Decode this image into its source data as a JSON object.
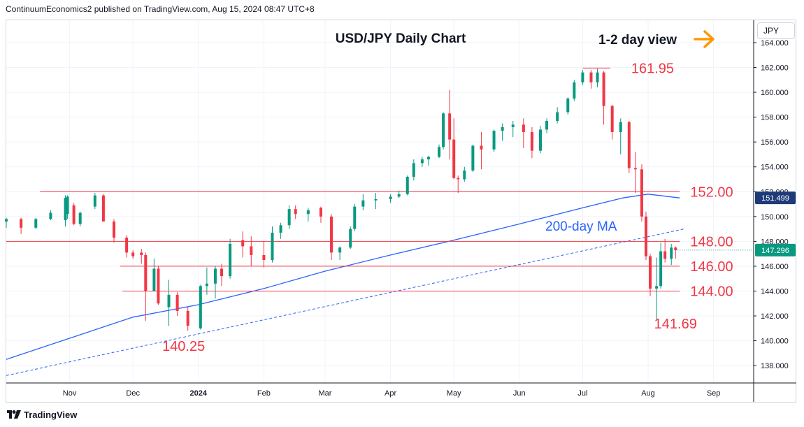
{
  "publisher_line": "ContinuumEconomics2 published on TradingView.com, Aug 15, 2024 08:47 UTC+8",
  "currency": "JPY",
  "branding": {
    "name": "TradingView",
    "icon": "tradingview-logo-icon"
  },
  "chart_data": {
    "type": "candlestick",
    "title": "USD/JPY Daily Chart",
    "subtitle": "1-2 day view",
    "y_axis": {
      "min": 136.6,
      "max": 165.8,
      "ticks": [
        "138.000",
        "140.000",
        "142.000",
        "144.000",
        "146.000",
        "148.000",
        "150.000",
        "152.000",
        "154.000",
        "156.000",
        "158.000",
        "160.000",
        "162.000",
        "164.000"
      ],
      "position": "right"
    },
    "x_axis": {
      "start": "2023-10-02",
      "end": "2024-09-20",
      "ticks": [
        {
          "date": "2023-11-01",
          "label": "Nov"
        },
        {
          "date": "2023-12-01",
          "label": "Dec"
        },
        {
          "date": "2024-01-01",
          "label": "2024"
        },
        {
          "date": "2024-02-01",
          "label": "Feb"
        },
        {
          "date": "2024-03-01",
          "label": "Mar"
        },
        {
          "date": "2024-04-01",
          "label": "Apr"
        },
        {
          "date": "2024-05-01",
          "label": "May"
        },
        {
          "date": "2024-06-01",
          "label": "Jun"
        },
        {
          "date": "2024-07-01",
          "label": "Jul"
        },
        {
          "date": "2024-08-01",
          "label": "Aug"
        },
        {
          "date": "2024-09-01",
          "label": "Sep"
        }
      ]
    },
    "colors": {
      "up": "#089981",
      "down": "#f23645",
      "level": "#f23645",
      "ma": "#2962ff",
      "trend": "#2962ff",
      "arrow": "#ff9800"
    },
    "candles": [
      [
        "2023-10-02",
        149.6,
        149.9,
        149.1,
        149.8
      ],
      [
        "2023-10-09",
        149.8,
        149.9,
        148.6,
        149.1
      ],
      [
        "2023-10-16",
        149.1,
        149.9,
        149.0,
        149.8
      ],
      [
        "2023-10-23",
        149.8,
        150.5,
        149.7,
        150.3
      ],
      [
        "2023-10-30",
        149.7,
        151.7,
        149.2,
        151.5
      ],
      [
        "2023-10-31",
        150.2,
        151.7,
        149.8,
        151.6
      ],
      [
        "2023-11-03",
        150.9,
        151.1,
        149.3,
        149.4
      ],
      [
        "2023-11-06",
        149.4,
        150.4,
        149.2,
        150.3
      ],
      [
        "2023-11-13",
        150.8,
        151.9,
        150.6,
        151.7
      ],
      [
        "2023-11-17",
        151.7,
        151.8,
        149.6,
        149.6
      ],
      [
        "2023-11-22",
        149.6,
        149.8,
        147.9,
        148.3
      ],
      [
        "2023-11-28",
        148.3,
        148.5,
        146.7,
        147.1
      ],
      [
        "2023-12-01",
        147.1,
        147.3,
        146.6,
        146.8
      ],
      [
        "2023-12-05",
        147.1,
        147.4,
        146.2,
        146.9
      ],
      [
        "2023-12-07",
        146.9,
        147.1,
        141.6,
        144.0
      ],
      [
        "2023-12-11",
        144.0,
        146.6,
        144.0,
        145.8
      ],
      [
        "2023-12-13",
        145.8,
        146.0,
        142.9,
        143.0
      ],
      [
        "2023-12-18",
        142.7,
        144.9,
        141.2,
        143.7
      ],
      [
        "2023-12-22",
        143.7,
        143.9,
        142.0,
        142.4
      ],
      [
        "2023-12-27",
        142.4,
        142.7,
        140.8,
        141.2
      ],
      [
        "2024-01-02",
        141.0,
        144.5,
        140.9,
        144.4
      ],
      [
        "2024-01-05",
        144.4,
        145.9,
        143.7,
        144.6
      ],
      [
        "2024-01-09",
        144.6,
        146.0,
        143.4,
        145.8
      ],
      [
        "2024-01-12",
        145.8,
        146.2,
        144.4,
        145.2
      ],
      [
        "2024-01-16",
        145.2,
        148.2,
        145.0,
        147.8
      ],
      [
        "2024-01-22",
        148.1,
        148.8,
        146.7,
        147.6
      ],
      [
        "2024-01-26",
        147.6,
        148.4,
        146.0,
        146.9
      ],
      [
        "2024-02-01",
        146.9,
        148.0,
        145.9,
        146.5
      ],
      [
        "2024-02-05",
        146.5,
        149.2,
        146.3,
        148.7
      ],
      [
        "2024-02-09",
        148.7,
        149.5,
        148.2,
        149.3
      ],
      [
        "2024-02-13",
        149.3,
        150.9,
        149.0,
        150.6
      ],
      [
        "2024-02-16",
        150.6,
        150.9,
        149.8,
        150.2
      ],
      [
        "2024-02-22",
        150.2,
        150.7,
        149.6,
        150.5
      ],
      [
        "2024-02-28",
        150.7,
        150.8,
        149.5,
        150.0
      ],
      [
        "2024-03-04",
        150.0,
        150.2,
        146.5,
        147.1
      ],
      [
        "2024-03-08",
        147.1,
        147.6,
        146.5,
        147.5
      ],
      [
        "2024-03-13",
        147.5,
        149.2,
        147.4,
        149.0
      ],
      [
        "2024-03-15",
        149.0,
        151.0,
        148.8,
        150.8
      ],
      [
        "2024-03-19",
        150.8,
        151.8,
        150.5,
        151.3
      ],
      [
        "2024-03-25",
        151.3,
        151.9,
        150.6,
        151.4
      ],
      [
        "2024-04-01",
        151.4,
        151.8,
        151.1,
        151.6
      ],
      [
        "2024-04-05",
        151.6,
        152.1,
        151.5,
        151.8
      ],
      [
        "2024-04-09",
        151.8,
        153.3,
        151.7,
        153.2
      ],
      [
        "2024-04-12",
        153.2,
        154.6,
        152.9,
        154.3
      ],
      [
        "2024-04-16",
        154.3,
        154.8,
        154.0,
        154.6
      ],
      [
        "2024-04-19",
        154.6,
        154.9,
        154.1,
        154.8
      ],
      [
        "2024-04-24",
        154.8,
        155.8,
        154.7,
        155.6
      ],
      [
        "2024-04-26",
        155.6,
        158.4,
        155.4,
        158.3
      ],
      [
        "2024-04-29",
        158.3,
        160.2,
        154.6,
        156.2
      ],
      [
        "2024-05-01",
        156.2,
        157.9,
        153.0,
        153.1
      ],
      [
        "2024-05-03",
        153.1,
        153.3,
        151.9,
        153.0
      ],
      [
        "2024-05-06",
        153.0,
        154.0,
        152.8,
        153.7
      ],
      [
        "2024-05-10",
        153.7,
        155.8,
        153.6,
        155.7
      ],
      [
        "2024-05-14",
        155.7,
        156.8,
        153.8,
        155.4
      ],
      [
        "2024-05-20",
        155.4,
        157.0,
        155.2,
        156.9
      ],
      [
        "2024-05-24",
        156.9,
        157.5,
        156.1,
        157.2
      ],
      [
        "2024-05-29",
        157.2,
        157.7,
        156.4,
        157.4
      ],
      [
        "2024-06-03",
        157.4,
        157.9,
        155.5,
        156.8
      ],
      [
        "2024-06-07",
        156.8,
        157.2,
        154.7,
        155.3
      ],
      [
        "2024-06-11",
        155.3,
        157.3,
        155.1,
        157.0
      ],
      [
        "2024-06-14",
        157.0,
        157.9,
        156.7,
        157.7
      ],
      [
        "2024-06-19",
        157.7,
        158.8,
        157.5,
        158.4
      ],
      [
        "2024-06-24",
        158.4,
        159.6,
        158.2,
        159.5
      ],
      [
        "2024-06-27",
        159.5,
        161.0,
        159.3,
        160.8
      ],
      [
        "2024-07-01",
        160.8,
        161.8,
        160.6,
        161.6
      ],
      [
        "2024-07-05",
        161.6,
        161.8,
        160.3,
        160.8
      ],
      [
        "2024-07-08",
        160.8,
        161.9,
        160.4,
        161.6
      ],
      [
        "2024-07-11",
        161.6,
        161.7,
        157.4,
        158.9
      ],
      [
        "2024-07-15",
        158.9,
        159.0,
        156.2,
        156.8
      ],
      [
        "2024-07-19",
        156.8,
        157.9,
        155.0,
        157.6
      ],
      [
        "2024-07-23",
        157.6,
        157.7,
        153.5,
        153.9
      ],
      [
        "2024-07-26",
        153.9,
        155.2,
        151.9,
        153.8
      ],
      [
        "2024-07-29",
        153.8,
        154.2,
        149.6,
        150.0
      ],
      [
        "2024-07-31",
        150.0,
        150.4,
        146.5,
        146.8
      ],
      [
        "2024-08-02",
        146.8,
        147.0,
        143.6,
        144.2
      ],
      [
        "2024-08-05",
        144.2,
        146.7,
        141.69,
        144.4
      ],
      [
        "2024-08-07",
        144.4,
        147.9,
        144.2,
        147.2
      ],
      [
        "2024-08-09",
        147.2,
        148.2,
        146.3,
        146.6
      ],
      [
        "2024-08-12",
        146.6,
        147.8,
        146.1,
        147.5
      ],
      [
        "2024-08-14",
        147.5,
        147.6,
        146.6,
        147.296
      ]
    ],
    "moving_average": {
      "label": "200-day MA",
      "last_value": "151.499",
      "points": [
        [
          "2023-10-02",
          138.5
        ],
        [
          "2023-11-01",
          140.2
        ],
        [
          "2023-12-01",
          141.9
        ],
        [
          "2024-01-01",
          142.9
        ],
        [
          "2024-02-01",
          144.2
        ],
        [
          "2024-03-01",
          145.6
        ],
        [
          "2024-04-01",
          146.9
        ],
        [
          "2024-05-01",
          148.1
        ],
        [
          "2024-06-01",
          149.4
        ],
        [
          "2024-07-01",
          150.7
        ],
        [
          "2024-07-20",
          151.5
        ],
        [
          "2024-08-01",
          151.8
        ],
        [
          "2024-08-16",
          151.5
        ]
      ]
    },
    "trendline": {
      "points": [
        [
          "2023-10-02",
          137.2
        ],
        [
          "2024-08-18",
          149.0
        ]
      ]
    },
    "levels": [
      {
        "value": 161.95,
        "label": "161.95",
        "from": "2024-07-01",
        "to": "2024-07-14",
        "label_at": "2024-07-24"
      },
      {
        "value": 152.0,
        "label": "152.00",
        "from": "2023-10-18",
        "to": "2024-08-16",
        "label_at": "2024-08-21"
      },
      {
        "value": 148.0,
        "label": "148.00",
        "from": "2023-10-02",
        "to": "2024-08-16",
        "label_at": "2024-08-21"
      },
      {
        "value": 146.0,
        "label": "146.00",
        "from": "2023-11-25",
        "to": "2024-08-16",
        "label_at": "2024-08-21"
      },
      {
        "value": 144.0,
        "label": "144.00",
        "from": "2023-11-26",
        "to": "2024-08-16",
        "label_at": "2024-08-21"
      }
    ],
    "annotations": [
      {
        "label": "140.25",
        "date": "2023-12-25",
        "value": 139.2
      },
      {
        "label": "141.69",
        "date": "2024-08-14",
        "value": 141.0
      }
    ],
    "last_price": "147.296"
  }
}
